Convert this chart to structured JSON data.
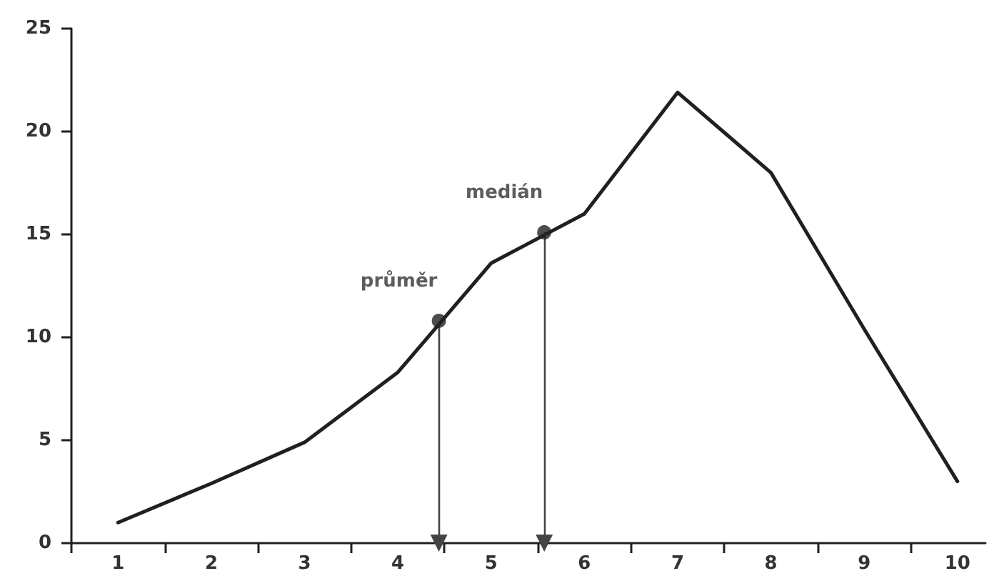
{
  "chart_data": {
    "type": "line",
    "x": [
      1,
      2,
      3,
      4,
      5,
      6,
      7,
      8,
      9,
      10
    ],
    "series": [
      {
        "color": "#231f20",
        "values": [
          1.0,
          2.9,
          4.9,
          8.3,
          13.6,
          16.0,
          21.9,
          18.0,
          10.4,
          3.0
        ]
      }
    ],
    "xlim": [
      0.5,
      10.3
    ],
    "xticks": [
      {
        "value": 0.5,
        "label": null
      },
      {
        "value": 1,
        "label": "1"
      },
      {
        "value": 1.5,
        "label": null
      },
      {
        "value": 2,
        "label": "2"
      },
      {
        "value": 2.5,
        "label": null
      },
      {
        "value": 3,
        "label": "3"
      },
      {
        "value": 3.5,
        "label": null
      },
      {
        "value": 4,
        "label": "4"
      },
      {
        "value": 4.5,
        "label": null
      },
      {
        "value": 5,
        "label": "5"
      },
      {
        "value": 5.5,
        "label": null
      },
      {
        "value": 6,
        "label": "6"
      },
      {
        "value": 6.5,
        "label": null
      },
      {
        "value": 7,
        "label": "7"
      },
      {
        "value": 7.5,
        "label": null
      },
      {
        "value": 8,
        "label": "8"
      },
      {
        "value": 8.5,
        "label": null
      },
      {
        "value": 9,
        "label": "9"
      },
      {
        "value": 9.5,
        "label": null
      },
      {
        "value": 10,
        "label": "10"
      }
    ],
    "ylim": [
      0,
      25
    ],
    "yticks": [
      0,
      5,
      10,
      15,
      20,
      25
    ],
    "annotations": [
      {
        "text": "průměr",
        "x": 4.44,
        "y": 10.8
      },
      {
        "text": "medián",
        "x": 5.57,
        "y": 15.1
      }
    ],
    "grid": false,
    "marker": "none",
    "line_style": "solid"
  }
}
